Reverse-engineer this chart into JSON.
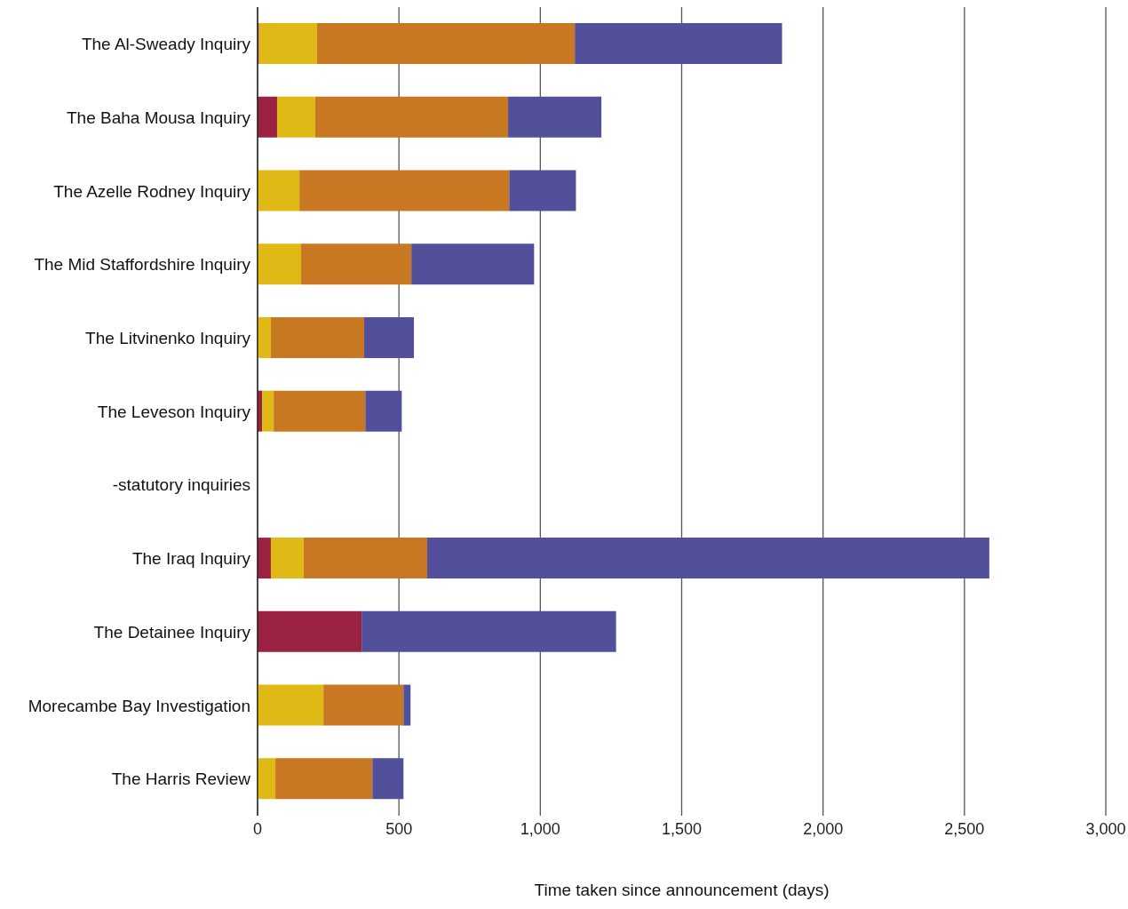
{
  "chart_data": {
    "type": "bar",
    "orientation": "horizontal",
    "stacked": true,
    "xlabel": "Time taken since announcement (days)",
    "categories": [
      "The Al-Sweady Inquiry",
      "The Baha Mousa Inquiry",
      "The Azelle Rodney Inquiry",
      "The Mid Staffordshire Inquiry",
      "The Litvinenko Inquiry",
      "The Leveson Inquiry",
      "-statutory inquiries",
      "The Iraq Inquiry",
      "The Detainee Inquiry",
      "Morecambe Bay Investigation",
      "The Harris Review"
    ],
    "series": [
      {
        "color": "#9b2242",
        "values": [
          5,
          69,
          null,
          null,
          null,
          16,
          null,
          47,
          368,
          null,
          null
        ]
      },
      {
        "color": "#dfb915",
        "values": [
          205,
          135,
          148,
          154,
          47,
          41,
          null,
          116,
          null,
          233,
          63
        ]
      },
      {
        "color": "#c87820",
        "values": [
          912,
          682,
          742,
          390,
          330,
          324,
          null,
          437,
          null,
          283,
          343
        ]
      },
      {
        "color": "#52509a",
        "values": [
          733,
          330,
          236,
          434,
          176,
          129,
          null,
          1988,
          900,
          25,
          110
        ]
      }
    ],
    "xlim": [
      0,
      3000
    ],
    "xticks": [
      {
        "value": 0,
        "label": "0"
      },
      {
        "value": 500,
        "label": "500"
      },
      {
        "value": 1000,
        "label": "1,000"
      },
      {
        "value": 1500,
        "label": "1,500"
      },
      {
        "value": 2000,
        "label": "2,000"
      },
      {
        "value": 2500,
        "label": "2,500"
      },
      {
        "value": 3000,
        "label": "3,000"
      }
    ],
    "grid": "x",
    "legend": false
  }
}
